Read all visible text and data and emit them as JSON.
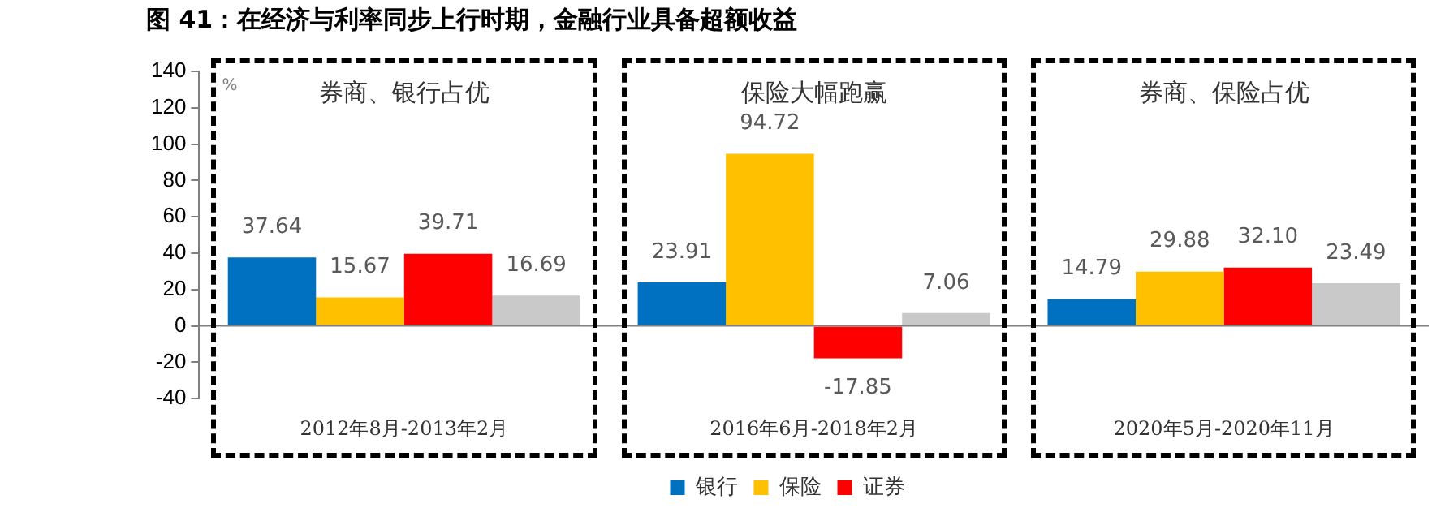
{
  "chart_data": {
    "type": "bar",
    "title": "图 41：在经济与利率同步上行时期，金融行业具备超额收益",
    "ylabel": "%",
    "categories": [
      "2012年8月-2013年2月",
      "2016年6月-2018年2月",
      "2020年5月-2020年11月"
    ],
    "series": [
      {
        "name": "银行",
        "color": "#0070c0",
        "values": [
          37.64,
          23.91,
          14.79
        ],
        "value_labels": [
          "37.64",
          "23.91",
          "14.79"
        ]
      },
      {
        "name": "保险",
        "color": "#ffc000",
        "values": [
          15.67,
          94.72,
          29.88
        ],
        "value_labels": [
          "15.67",
          "94.72",
          "29.88"
        ]
      },
      {
        "name": "证券",
        "color": "#ff0000",
        "values": [
          39.71,
          -17.85,
          32.1
        ],
        "value_labels": [
          "39.71",
          "-17.85",
          "32.10"
        ]
      },
      {
        "color": "#c9c9c9",
        "values": [
          16.69,
          7.06,
          23.49
        ],
        "value_labels": [
          "16.69",
          "7.06",
          "23.49"
        ]
      }
    ],
    "annotations": [
      "券商、银行占优",
      "保险大幅跑赢",
      "券商、保险占优"
    ],
    "ylim": [
      -40,
      140
    ],
    "yticks": [
      -40,
      -20,
      0,
      20,
      40,
      60,
      80,
      100,
      120,
      140
    ],
    "legend": "bottom"
  }
}
